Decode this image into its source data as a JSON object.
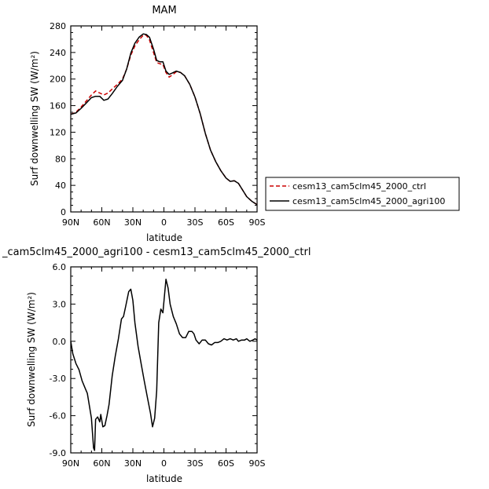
{
  "chart_data": [
    {
      "type": "line",
      "title": "MAM",
      "xlabel": "latitude",
      "ylabel": "Surf downwelling SW (W/m²)",
      "xlim": [
        90,
        -90
      ],
      "ylim": [
        0,
        280
      ],
      "x_tick_values": [
        90,
        60,
        30,
        0,
        -30,
        -60,
        -90
      ],
      "x_tick_labels": [
        "90N",
        "60N",
        "30N",
        "0",
        "30S",
        "60S",
        "90S"
      ],
      "y_tick_values": [
        0,
        40,
        80,
        120,
        160,
        200,
        240,
        280
      ],
      "y_tick_labels": [
        "0",
        "40",
        "80",
        "120",
        "160",
        "200",
        "240",
        "280"
      ],
      "legend_position": "right",
      "series": [
        {
          "name": "cesm13_cam5clm45_2000_ctrl",
          "color": "#cc0000",
          "dash": "dashed",
          "points": [
            [
              90,
              147
            ],
            [
              85,
              150
            ],
            [
              80,
              158
            ],
            [
              75,
              167
            ],
            [
              70,
              176
            ],
            [
              66,
              182
            ],
            [
              62,
              179
            ],
            [
              58,
              176
            ],
            [
              54,
              179
            ],
            [
              50,
              185
            ],
            [
              45,
              192
            ],
            [
              40,
              200
            ],
            [
              36,
              215
            ],
            [
              32,
              236
            ],
            [
              28,
              250
            ],
            [
              24,
              259
            ],
            [
              20,
              266
            ],
            [
              17,
              266
            ],
            [
              14,
              259
            ],
            [
              10,
              240
            ],
            [
              7,
              225
            ],
            [
              4,
              223
            ],
            [
              1,
              222
            ],
            [
              -2,
              210
            ],
            [
              -5,
              203
            ],
            [
              -8,
              206
            ],
            [
              -12,
              211
            ],
            [
              -16,
              210
            ],
            [
              -20,
              205
            ],
            [
              -25,
              192
            ],
            [
              -30,
              173
            ],
            [
              -35,
              148
            ],
            [
              -40,
              118
            ],
            [
              -45,
              93
            ],
            [
              -50,
              76
            ],
            [
              -55,
              62
            ],
            [
              -60,
              51
            ],
            [
              -64,
              46
            ],
            [
              -68,
              47
            ],
            [
              -72,
              43
            ],
            [
              -76,
              33
            ],
            [
              -80,
              23
            ],
            [
              -85,
              16
            ],
            [
              -90,
              11
            ]
          ]
        },
        {
          "name": "cesm13_cam5clm45_2000_agri100",
          "color": "#000000",
          "dash": "solid",
          "points": [
            [
              90,
              147
            ],
            [
              85,
              149
            ],
            [
              80,
              156
            ],
            [
              75,
              164
            ],
            [
              70,
              172
            ],
            [
              66,
              174
            ],
            [
              62,
              174
            ],
            [
              58,
              168
            ],
            [
              54,
              170
            ],
            [
              50,
              178
            ],
            [
              45,
              189
            ],
            [
              40,
              198
            ],
            [
              36,
              215
            ],
            [
              32,
              239
            ],
            [
              28,
              254
            ],
            [
              24,
              263
            ],
            [
              20,
              268
            ],
            [
              17,
              267
            ],
            [
              14,
              263
            ],
            [
              10,
              245
            ],
            [
              7,
              228
            ],
            [
              4,
              226
            ],
            [
              1,
              226
            ],
            [
              -2,
              212
            ],
            [
              -5,
              207
            ],
            [
              -8,
              209
            ],
            [
              -12,
              212
            ],
            [
              -16,
              210
            ],
            [
              -20,
              205
            ],
            [
              -25,
              192
            ],
            [
              -30,
              173
            ],
            [
              -35,
              148
            ],
            [
              -40,
              118
            ],
            [
              -45,
              93
            ],
            [
              -50,
              76
            ],
            [
              -55,
              62
            ],
            [
              -60,
              51
            ],
            [
              -64,
              46
            ],
            [
              -68,
              47
            ],
            [
              -72,
              43
            ],
            [
              -76,
              33
            ],
            [
              -80,
              23
            ],
            [
              -85,
              16
            ],
            [
              -90,
              11
            ]
          ]
        }
      ]
    },
    {
      "type": "line",
      "title": "_cam5clm45_2000_agri100 - cesm13_cam5clm45_2000_ctrl",
      "xlabel": "latitude",
      "ylabel": "Surf downwelling SW (W/m²)",
      "xlim": [
        90,
        -90
      ],
      "ylim": [
        -9,
        6
      ],
      "x_tick_values": [
        90,
        60,
        30,
        0,
        -30,
        -60,
        -90
      ],
      "x_tick_labels": [
        "90N",
        "60N",
        "30N",
        "0",
        "30S",
        "60S",
        "90S"
      ],
      "y_tick_values": [
        -9,
        -6,
        -3,
        0,
        3,
        6
      ],
      "y_tick_labels": [
        "-9.0",
        "-6.0",
        "-3.0",
        "0.0",
        "3.0",
        "6.0"
      ],
      "series": [
        {
          "color": "#000000",
          "dash": "solid",
          "points": [
            [
              90,
              0
            ],
            [
              88,
              -1
            ],
            [
              85,
              -1.8
            ],
            [
              82,
              -2.3
            ],
            [
              79,
              -3.2
            ],
            [
              76,
              -3.8
            ],
            [
              74,
              -4.2
            ],
            [
              72,
              -5.2
            ],
            [
              70,
              -6.2
            ],
            [
              68,
              -8.6
            ],
            [
              67,
              -8.8
            ],
            [
              66,
              -6.3
            ],
            [
              64,
              -6.1
            ],
            [
              62,
              -6.5
            ],
            [
              61,
              -5.9
            ],
            [
              59,
              -6.9
            ],
            [
              57,
              -6.8
            ],
            [
              55,
              -6
            ],
            [
              53,
              -5.1
            ],
            [
              50,
              -2.8
            ],
            [
              47,
              -1.2
            ],
            [
              44,
              0.2
            ],
            [
              41,
              1.8
            ],
            [
              39,
              2
            ],
            [
              37,
              2.8
            ],
            [
              34,
              4
            ],
            [
              32,
              4.2
            ],
            [
              30,
              3.3
            ],
            [
              28,
              1.5
            ],
            [
              25,
              -0.4
            ],
            [
              22,
              -1.8
            ],
            [
              19,
              -3.2
            ],
            [
              16,
              -4.5
            ],
            [
              13,
              -5.8
            ],
            [
              11,
              -6.9
            ],
            [
              9,
              -6.2
            ],
            [
              7,
              -4
            ],
            [
              5,
              1.5
            ],
            [
              3,
              2.6
            ],
            [
              1,
              2.3
            ],
            [
              -2,
              5
            ],
            [
              -4,
              4.3
            ],
            [
              -6,
              3
            ],
            [
              -9,
              2
            ],
            [
              -12,
              1.4
            ],
            [
              -15,
              0.6
            ],
            [
              -18,
              0.3
            ],
            [
              -21,
              0.3
            ],
            [
              -24,
              0.8
            ],
            [
              -27,
              0.8
            ],
            [
              -29,
              0.6
            ],
            [
              -31,
              0.1
            ],
            [
              -34,
              -0.2
            ],
            [
              -37,
              0.1
            ],
            [
              -40,
              0.1
            ],
            [
              -43,
              -0.2
            ],
            [
              -46,
              -0.3
            ],
            [
              -49,
              -0.1
            ],
            [
              -52,
              -0.1
            ],
            [
              -55,
              0
            ],
            [
              -58,
              0.2
            ],
            [
              -61,
              0.1
            ],
            [
              -64,
              0.2
            ],
            [
              -67,
              0.1
            ],
            [
              -70,
              0.2
            ],
            [
              -72,
              0
            ],
            [
              -75,
              0.1
            ],
            [
              -78,
              0.1
            ],
            [
              -80,
              0.2
            ],
            [
              -83,
              0
            ],
            [
              -86,
              0.1
            ],
            [
              -88,
              0.2
            ],
            [
              -90,
              0.1
            ]
          ]
        }
      ]
    }
  ]
}
